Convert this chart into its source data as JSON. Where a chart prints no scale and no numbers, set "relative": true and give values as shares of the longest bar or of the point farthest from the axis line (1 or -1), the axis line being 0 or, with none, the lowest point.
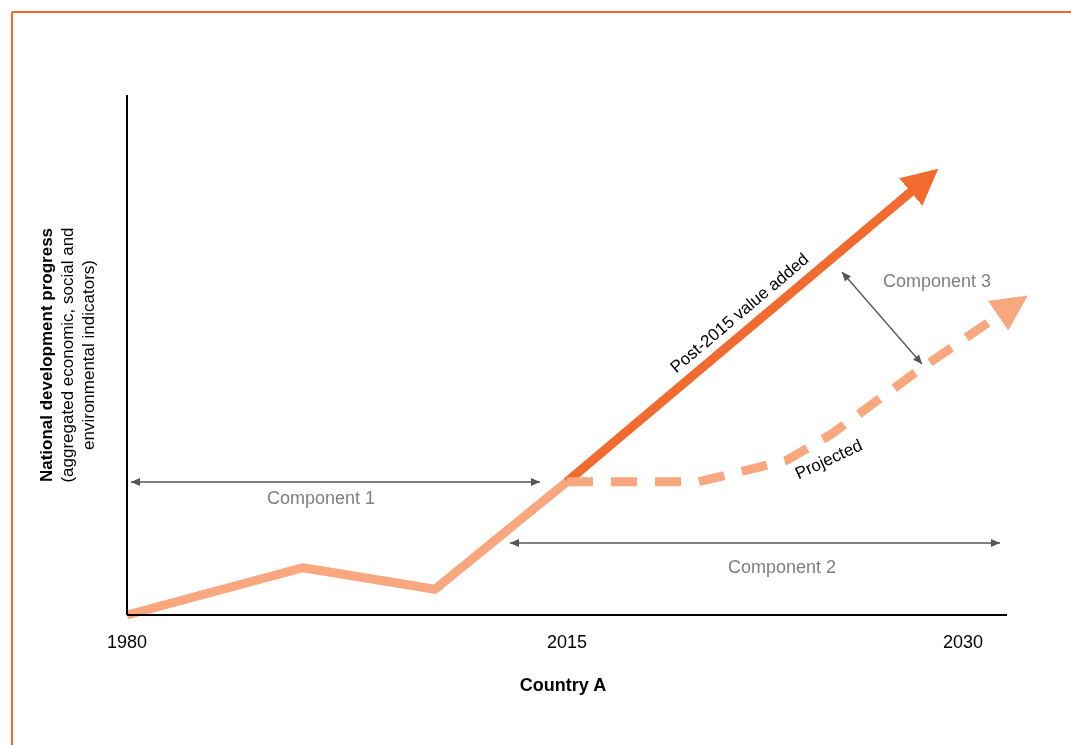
{
  "chart_data": {
    "type": "line",
    "relative": true,
    "xlabel": "Country A",
    "ylabel": "National development progress (aggregated economic, social and environmental indicators)",
    "categories": [
      "1980",
      null,
      null,
      null,
      null,
      null,
      null,
      null,
      null,
      null,
      "2015",
      null,
      null,
      null,
      null,
      null,
      null,
      null,
      null,
      "2030",
      null
    ],
    "series": [
      {
        "color": "#f9a77f",
        "line_style": "solid",
        "values": [
          0,
          null,
          null,
          null,
          0.11,
          null,
          null,
          0.06,
          null,
          null,
          0.31,
          null,
          null,
          null,
          null,
          null,
          null,
          null,
          null,
          null,
          null
        ]
      },
      {
        "name": "Post-2015 value added",
        "color": "#f26b2e",
        "line_style": "solid",
        "values": [
          null,
          null,
          null,
          null,
          null,
          null,
          null,
          null,
          null,
          null,
          0.31,
          null,
          null,
          null,
          null,
          null,
          null,
          null,
          1.0,
          null,
          null
        ]
      },
      {
        "name": "Projected",
        "color": "#f9a77f",
        "line_style": "dashed",
        "values": [
          null,
          null,
          null,
          null,
          null,
          null,
          null,
          null,
          null,
          null,
          0.31,
          null,
          null,
          0.31,
          null,
          0.36,
          0.42,
          null,
          0.57,
          null,
          0.71
        ]
      }
    ],
    "annotations": [
      "Component 1",
      "Component 2",
      "Component 3"
    ],
    "marker": "none",
    "tick_labels": "x"
  }
}
